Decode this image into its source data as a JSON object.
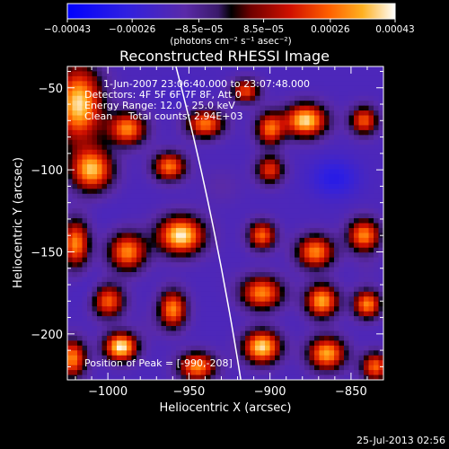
{
  "chart_data": {
    "type": "heatmap",
    "title": "Reconstructed RHESSI Image",
    "xlabel": "Heliocentric X (arcsec)",
    "ylabel": "Heliocentric Y (arcsec)",
    "xlim": [
      -1025,
      -830
    ],
    "ylim": [
      -228,
      -37
    ],
    "xticks": [
      -1000,
      -950,
      -900,
      -850
    ],
    "xtick_labels": [
      "−1000",
      "−950",
      "−900",
      "−850"
    ],
    "yticks": [
      -50,
      -100,
      -150,
      -200
    ],
    "ytick_labels": [
      "−50",
      "−100",
      "−150",
      "−200"
    ],
    "annotations": [
      "1-Jun-2007 23:06:40.000 to 23:07:48.000",
      "Detectors: 4F 5F 6F 7F 8F, Att 0",
      "Energy Range: 12.0 - 25.0 keV",
      "Clean     Total counts: 2.94E+03"
    ],
    "peak_label": "Position of Peak = [-990,-208]",
    "peak": [
      -990,
      -208
    ],
    "colorbar": {
      "ticks": [
        -0.00043,
        -0.00026,
        -8.5e-05,
        8.5e-05,
        0.00026,
        0.00043
      ],
      "tick_labels": [
        "−0.00043",
        "−0.00026",
        "−8.5e−05",
        "8.5e−05",
        "0.00026",
        "0.00043"
      ],
      "units": "(photons cm⁻² s⁻¹ asec⁻²)",
      "range": [
        -0.00043,
        0.00043
      ]
    },
    "limb_curve": [
      [
        -958,
        -37
      ],
      [
        -936,
        -130
      ],
      [
        -918,
        -228
      ]
    ],
    "blobs": [
      {
        "x": -1018,
        "y": -60,
        "sx": 10,
        "sy": 16,
        "v": 0.0004
      },
      {
        "x": -1010,
        "y": -100,
        "sx": 9,
        "sy": 9,
        "v": 0.00036
      },
      {
        "x": -988,
        "y": -75,
        "sx": 8,
        "sy": 7,
        "v": 0.0003
      },
      {
        "x": -940,
        "y": -72,
        "sx": 8,
        "sy": 6,
        "v": 0.00028
      },
      {
        "x": -900,
        "y": -75,
        "sx": 6,
        "sy": 7,
        "v": 0.00026
      },
      {
        "x": -878,
        "y": -70,
        "sx": 9,
        "sy": 7,
        "v": 0.0004
      },
      {
        "x": -842,
        "y": -70,
        "sx": 6,
        "sy": 6,
        "v": 0.00024
      },
      {
        "x": -962,
        "y": -98,
        "sx": 7,
        "sy": 6,
        "v": 0.00028
      },
      {
        "x": -900,
        "y": -100,
        "sx": 6,
        "sy": 6,
        "v": 0.0002
      },
      {
        "x": -1020,
        "y": -145,
        "sx": 6,
        "sy": 10,
        "v": 0.0003
      },
      {
        "x": -988,
        "y": -150,
        "sx": 8,
        "sy": 8,
        "v": 0.0003
      },
      {
        "x": -955,
        "y": -140,
        "sx": 10,
        "sy": 8,
        "v": 0.00042
      },
      {
        "x": -905,
        "y": -140,
        "sx": 6,
        "sy": 6,
        "v": 0.00026
      },
      {
        "x": -872,
        "y": -150,
        "sx": 8,
        "sy": 7,
        "v": 0.0003
      },
      {
        "x": -842,
        "y": -140,
        "sx": 7,
        "sy": 7,
        "v": 0.0003
      },
      {
        "x": -1000,
        "y": -180,
        "sx": 7,
        "sy": 7,
        "v": 0.00026
      },
      {
        "x": -960,
        "y": -185,
        "sx": 6,
        "sy": 8,
        "v": 0.0003
      },
      {
        "x": -905,
        "y": -175,
        "sx": 9,
        "sy": 7,
        "v": 0.0003
      },
      {
        "x": -868,
        "y": -180,
        "sx": 7,
        "sy": 7,
        "v": 0.00034
      },
      {
        "x": -840,
        "y": -182,
        "sx": 6,
        "sy": 6,
        "v": 0.0003
      },
      {
        "x": -992,
        "y": -208,
        "sx": 7,
        "sy": 6,
        "v": 0.00043
      },
      {
        "x": -1022,
        "y": -215,
        "sx": 6,
        "sy": 8,
        "v": 0.0003
      },
      {
        "x": -945,
        "y": -220,
        "sx": 8,
        "sy": 6,
        "v": 0.0003
      },
      {
        "x": -905,
        "y": -208,
        "sx": 8,
        "sy": 7,
        "v": 0.0004
      },
      {
        "x": -865,
        "y": -212,
        "sx": 8,
        "sy": 7,
        "v": 0.00034
      },
      {
        "x": -835,
        "y": -220,
        "sx": 6,
        "sy": 6,
        "v": 0.00026
      },
      {
        "x": -915,
        "y": -52,
        "sx": 6,
        "sy": 5,
        "v": 0.00022
      },
      {
        "x": -860,
        "y": -105,
        "sx": 10,
        "sy": 8,
        "v": -0.0003
      },
      {
        "x": -955,
        "y": -55,
        "sx": 9,
        "sy": 7,
        "v": -0.0002
      },
      {
        "x": -1000,
        "y": -125,
        "sx": 8,
        "sy": 7,
        "v": -0.00018
      },
      {
        "x": -930,
        "y": -110,
        "sx": 9,
        "sy": 8,
        "v": -0.00012
      },
      {
        "x": -1010,
        "y": -175,
        "sx": 6,
        "sy": 8,
        "v": -0.00022
      },
      {
        "x": -925,
        "y": -165,
        "sx": 8,
        "sy": 6,
        "v": -0.00016
      },
      {
        "x": -975,
        "y": -195,
        "sx": 6,
        "sy": 7,
        "v": -0.00014
      },
      {
        "x": -840,
        "y": -160,
        "sx": 6,
        "sy": 6,
        "v": -0.00014
      }
    ]
  },
  "footer": {
    "timestamp": "25-Jul-2013 02:56"
  }
}
